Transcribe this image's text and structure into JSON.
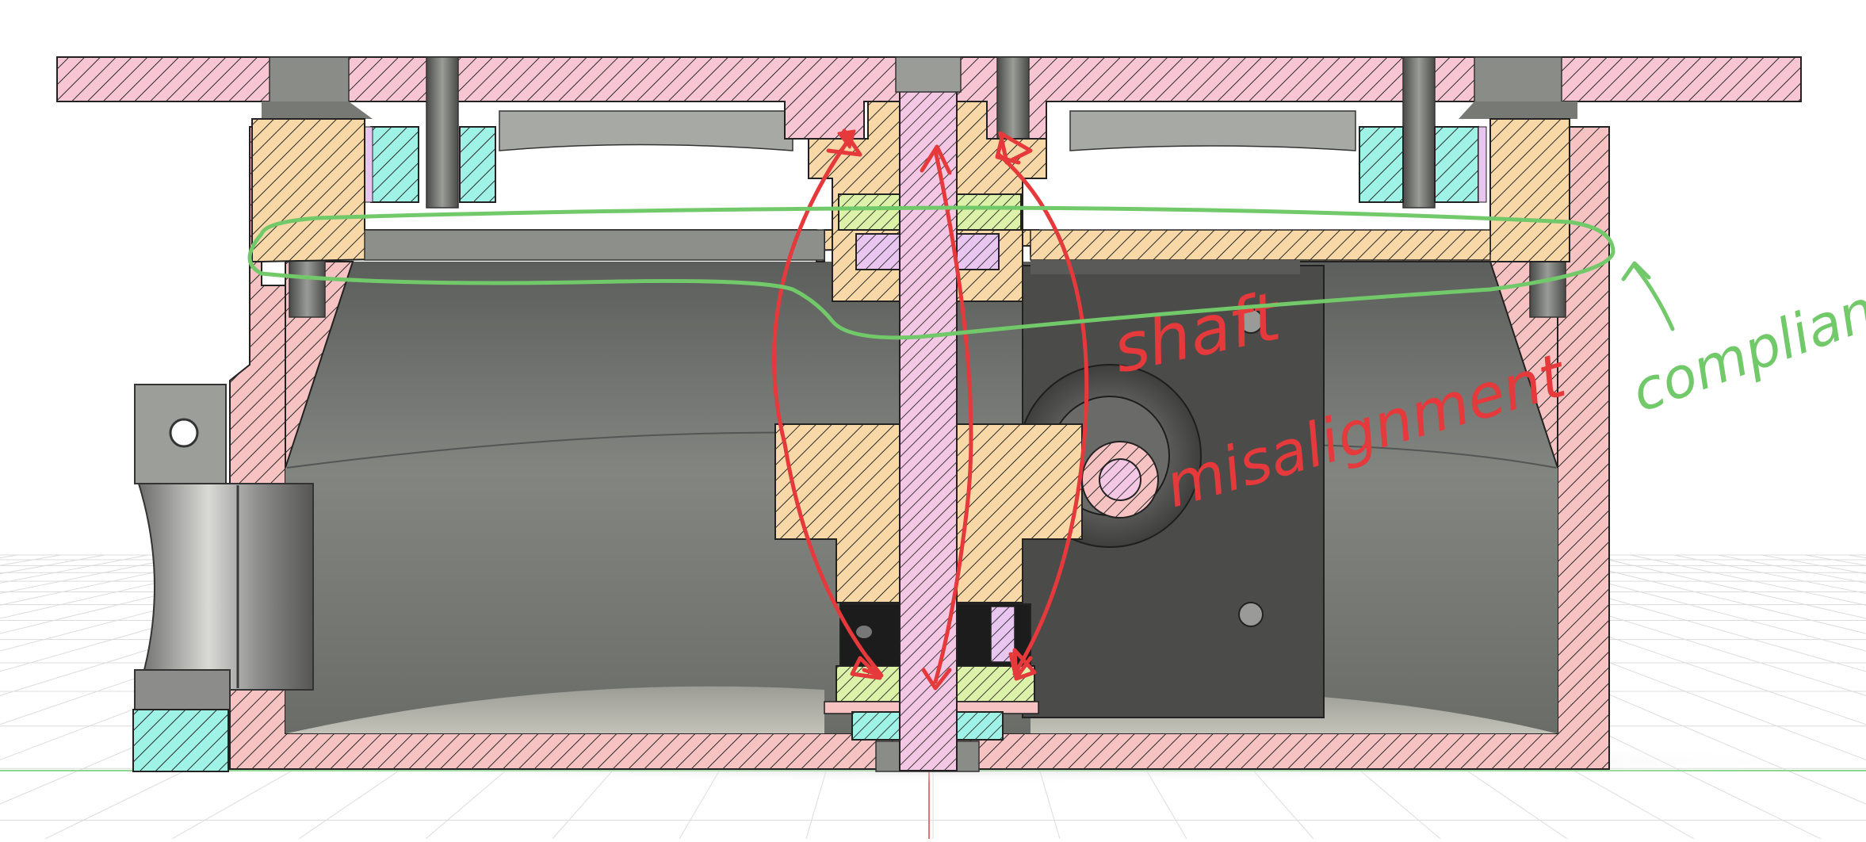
{
  "annotations": {
    "shaft_word": "shaft",
    "misalignment_word": "misalignment",
    "compliant_word": "compliant"
  },
  "colors": {
    "background": "#ffffff",
    "grid_line": "#d8d8d8",
    "ground_line": "#7fd07f",
    "housing_fill": "#f6c2c2",
    "housing_dark_fill": "#f0b0bc",
    "plate_fill": "#f7c6d2",
    "shaft_fill": "#f4c8e4",
    "bearing_fill": "#9ef2e6",
    "gear_fill": "#f7d8a6",
    "washer_fill": "#dcf2a8",
    "bushing_fill": "#e8c6f0",
    "cavity_gray": "#7d7f7b",
    "hatch_stroke": "#2a2a2a",
    "annotation_red": "#e5393b",
    "annotation_green": "#72c96a"
  }
}
